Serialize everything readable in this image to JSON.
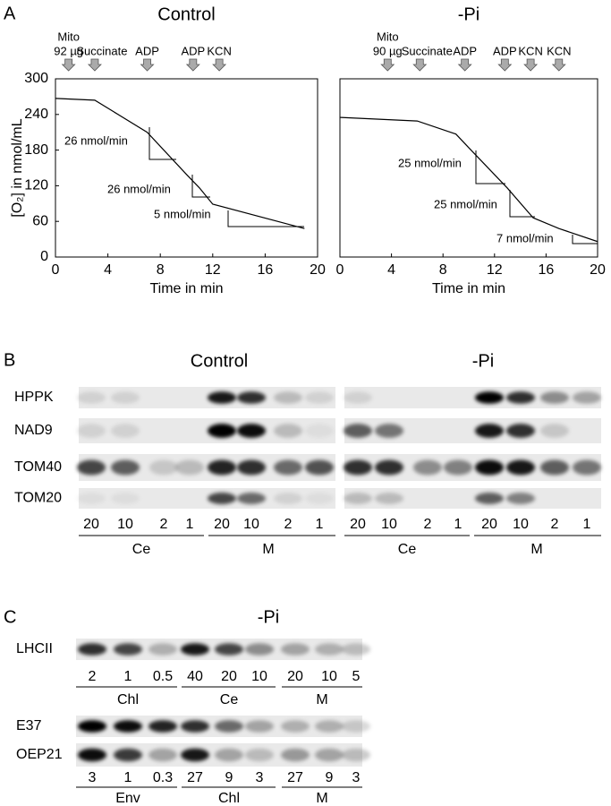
{
  "labels": {
    "a": "A",
    "b": "B",
    "c": "C"
  },
  "chart_data": [
    {
      "type": "line",
      "title": "Control",
      "x_label": "Time in min",
      "y_label": "[O₂] in nmol/mL",
      "color": "#000000",
      "x": [
        0,
        3,
        7,
        10,
        11,
        12,
        19
      ],
      "values": [
        267,
        264,
        210,
        139,
        116,
        89,
        48
      ],
      "xlim": [
        0,
        20
      ],
      "ylim": [
        0,
        300
      ],
      "xticks": [
        0,
        4,
        8,
        12,
        16,
        20
      ],
      "yticks": [
        0,
        60,
        120,
        180,
        240,
        300
      ],
      "additions": [
        {
          "label": [
            "Mito",
            "92 µg"
          ],
          "time": 1
        },
        {
          "label": [
            "Succinate"
          ],
          "time": 3
        },
        {
          "label": [
            "ADP"
          ],
          "time": 7
        },
        {
          "label": [
            "ADP"
          ],
          "time": 10.5
        },
        {
          "label": [
            "KCN"
          ],
          "time": 12.5
        }
      ],
      "rates": [
        "26 nmol/min",
        "26 nmol/min",
        "5 nmol/min"
      ]
    },
    {
      "type": "line",
      "title": "-Pi",
      "x_label": "Time in min",
      "color": "#000000",
      "x": [
        0,
        6,
        9,
        10,
        13,
        15,
        17,
        20
      ],
      "values": [
        235,
        229,
        207,
        184,
        116,
        66,
        48,
        26
      ],
      "xlim": [
        0,
        20
      ],
      "ylim": [
        0,
        300
      ],
      "xticks": [
        0,
        4,
        8,
        12,
        16,
        20
      ],
      "additions": [
        {
          "label": [
            "Mito",
            "90 µg"
          ],
          "time": 3.7
        },
        {
          "label": [
            "Succinate"
          ],
          "time": 6.2
        },
        {
          "label": [
            "ADP"
          ],
          "time": 9.7
        },
        {
          "label": [
            "ADP"
          ],
          "time": 12.8
        },
        {
          "label": [
            "KCN"
          ],
          "time": 14.8
        },
        {
          "label": [
            "KCN"
          ],
          "time": 17
        }
      ],
      "rates": [
        "25 nmol/min",
        "25 nmol/min",
        "7 nmol/min"
      ]
    }
  ],
  "panel_b": {
    "titles": [
      "Control",
      "-Pi"
    ],
    "rows": [
      "HPPK",
      "NAD9",
      "TOM40",
      "TOM20"
    ],
    "lanes": [
      "20",
      "10",
      "2",
      "1",
      "20",
      "10",
      "2",
      "1"
    ],
    "groups": [
      "Ce",
      "M"
    ]
  },
  "panel_c": {
    "title": "-Pi",
    "blot1": {
      "rows": [
        "LHCII"
      ],
      "lanes": [
        "2",
        "1",
        "0.5",
        "40",
        "20",
        "10",
        "20",
        "10",
        "5"
      ],
      "groups": [
        "Chl",
        "Ce",
        "M"
      ]
    },
    "blot2": {
      "rows": [
        "E37",
        "OEP21"
      ],
      "lanes": [
        "3",
        "1",
        "0.3",
        "27",
        "9",
        "3",
        "27",
        "9",
        "3"
      ],
      "groups": [
        "Env",
        "Chl",
        "M"
      ]
    }
  }
}
